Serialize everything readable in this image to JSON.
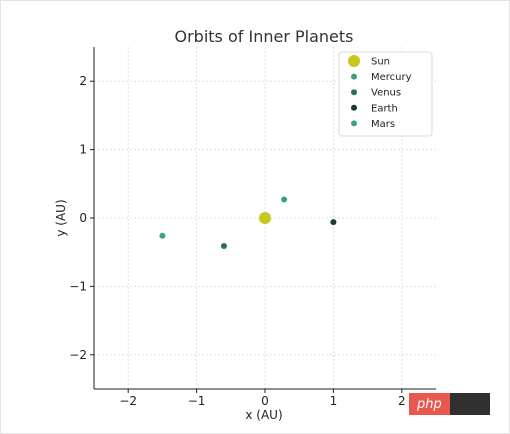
{
  "chart_data": {
    "type": "scatter",
    "title": "Orbits of Inner Planets",
    "xlabel": "x (AU)",
    "ylabel": "y (AU)",
    "xlim": [
      -2.5,
      2.5
    ],
    "ylim": [
      -2.5,
      2.5
    ],
    "xticks": [
      -2,
      -1,
      0,
      1,
      2
    ],
    "yticks": [
      -2,
      -1,
      0,
      1,
      2
    ],
    "xtick_labels": [
      "−2",
      "−1",
      "0",
      "1",
      "2"
    ],
    "ytick_labels": [
      "−2",
      "−1",
      "0",
      "1",
      "2"
    ],
    "grid": true,
    "legend_position": "top-right",
    "series": [
      {
        "name": "Sun",
        "color": "#c8c81a",
        "marker": "large",
        "points": [
          {
            "x": 0.0,
            "y": 0.0
          }
        ]
      },
      {
        "name": "Mercury",
        "color": "#3aa17e",
        "marker": "small",
        "points": [
          {
            "x": 0.28,
            "y": 0.27
          }
        ]
      },
      {
        "name": "Venus",
        "color": "#2e6f57",
        "marker": "small",
        "points": [
          {
            "x": -0.6,
            "y": -0.41
          }
        ]
      },
      {
        "name": "Earth",
        "color": "#1d3a2e",
        "marker": "small",
        "points": [
          {
            "x": 1.0,
            "y": -0.06
          }
        ]
      },
      {
        "name": "Mars",
        "color": "#3fa283",
        "marker": "small",
        "points": [
          {
            "x": -1.5,
            "y": -0.26
          }
        ]
      }
    ]
  },
  "watermark": {
    "text": "php"
  }
}
